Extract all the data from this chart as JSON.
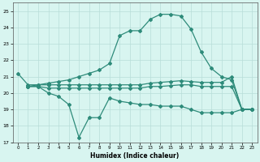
{
  "line1_x": [
    0,
    1,
    2,
    3,
    4,
    5,
    6,
    7,
    8,
    9,
    10,
    11,
    12,
    13,
    14,
    15,
    16,
    17,
    18,
    19,
    20,
    21,
    22,
    23
  ],
  "line1_y": [
    21.2,
    20.5,
    20.5,
    20.6,
    20.7,
    20.8,
    21.0,
    21.2,
    21.4,
    21.8,
    23.5,
    23.8,
    23.8,
    24.5,
    24.8,
    24.8,
    24.7,
    23.9,
    22.5,
    21.5,
    21.0,
    20.8,
    19.0,
    19.0
  ],
  "line2_x": [
    1,
    2,
    3,
    4,
    5,
    6,
    7,
    8,
    9,
    10,
    11,
    12,
    13,
    14,
    15,
    16,
    17,
    18,
    19,
    20,
    21,
    22,
    23
  ],
  "line2_y": [
    20.4,
    20.5,
    20.5,
    20.5,
    20.5,
    20.5,
    20.5,
    20.5,
    20.5,
    20.5,
    20.5,
    20.5,
    20.6,
    20.65,
    20.7,
    20.75,
    20.7,
    20.65,
    20.65,
    20.65,
    21.0,
    19.0,
    19.0
  ],
  "line3_x": [
    1,
    2,
    3,
    4,
    5,
    6,
    7,
    8,
    9,
    10,
    11,
    12,
    13,
    14,
    15,
    16,
    17,
    18,
    19,
    20,
    21,
    22,
    23
  ],
  "line3_y": [
    20.4,
    20.4,
    20.3,
    20.3,
    20.3,
    20.3,
    20.3,
    20.3,
    20.3,
    20.3,
    20.3,
    20.3,
    20.4,
    20.4,
    20.45,
    20.5,
    20.5,
    20.4,
    20.4,
    20.4,
    20.4,
    19.0,
    19.0
  ],
  "line4_x": [
    1,
    2,
    3,
    4,
    5,
    6,
    7,
    8,
    9,
    10,
    11,
    12,
    13,
    14,
    15,
    16,
    17,
    18,
    19,
    20,
    21,
    22,
    23
  ],
  "line4_y": [
    20.4,
    20.4,
    20.0,
    19.8,
    19.3,
    17.3,
    18.5,
    18.5,
    19.7,
    19.5,
    19.4,
    19.3,
    19.3,
    19.2,
    19.2,
    19.2,
    19.0,
    18.8,
    18.8,
    18.8,
    18.8,
    19.0,
    19.0
  ],
  "color": "#2e8b7a",
  "bg_color": "#d8f5f0",
  "grid_color": "#b8ddd8",
  "xlabel": "Humidex (Indice chaleur)",
  "ylim": [
    17,
    25.5
  ],
  "xlim": [
    -0.5,
    23.5
  ],
  "yticks": [
    17,
    18,
    19,
    20,
    21,
    22,
    23,
    24,
    25
  ],
  "xticks": [
    0,
    1,
    2,
    3,
    4,
    5,
    6,
    7,
    8,
    9,
    10,
    11,
    12,
    13,
    14,
    15,
    16,
    17,
    18,
    19,
    20,
    21,
    22,
    23
  ]
}
